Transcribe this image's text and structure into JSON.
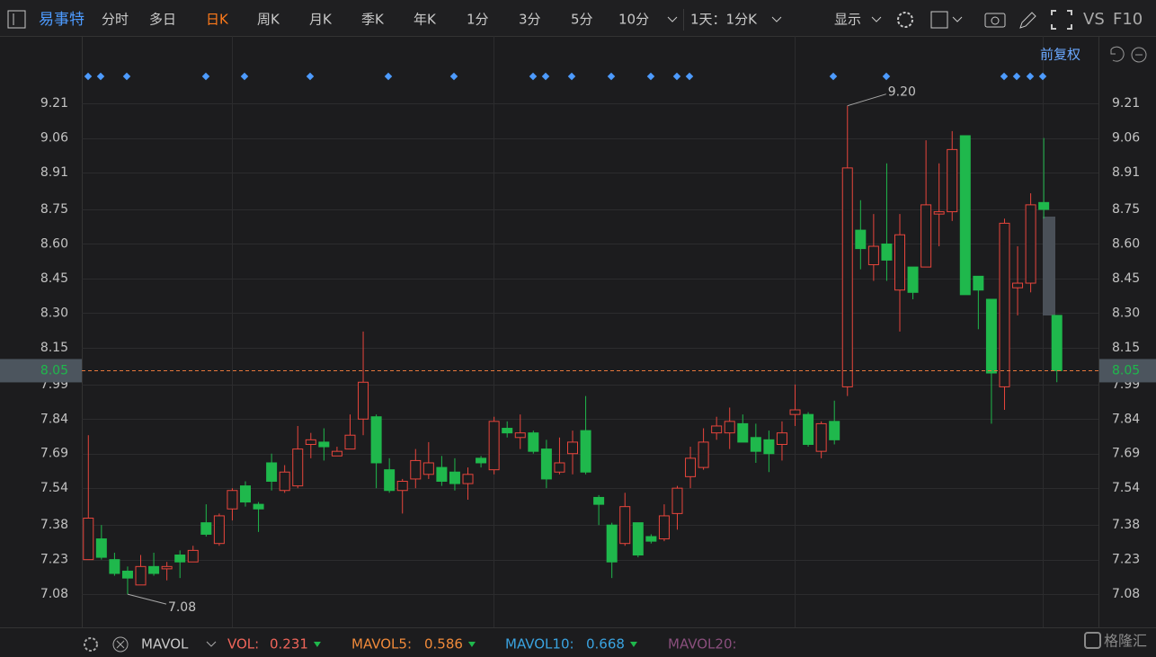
{
  "toolbar": {
    "stock_name": "易事特",
    "periods": [
      "分时",
      "多日",
      "日K",
      "周K",
      "月K",
      "季K",
      "年K",
      "1分",
      "3分",
      "5分",
      "10分"
    ],
    "interval": "1天：1分K",
    "display": "显示",
    "vs": "VS",
    "f10": "F10",
    "adjust": "前复权"
  },
  "chart_data": {
    "type": "candlestick",
    "up_color": "#e8453c",
    "down_color": "#1fb84c",
    "open": [
      7.23,
      7.32,
      7.23,
      7.18,
      7.12,
      7.2,
      7.19,
      7.25,
      7.22,
      7.39,
      7.3,
      7.45,
      7.55,
      7.47,
      7.65,
      7.53,
      7.55,
      7.73,
      7.74,
      7.68,
      7.71,
      7.84,
      7.85,
      7.62,
      7.53,
      7.58,
      7.6,
      7.63,
      7.61,
      7.56,
      7.67,
      7.62,
      7.8,
      7.76,
      7.78,
      7.71,
      7.61,
      7.69,
      7.79,
      7.5,
      7.38,
      7.3,
      7.39,
      7.33,
      7.32,
      7.43,
      7.59,
      7.63,
      7.78,
      7.78,
      7.82,
      7.76,
      7.75,
      7.73,
      7.86,
      7.86,
      7.7,
      7.83,
      7.98,
      8.66,
      8.51,
      8.6,
      8.4,
      8.5,
      8.5,
      8.73,
      8.74,
      9.07,
      8.46,
      8.36,
      7.98,
      8.41,
      8.43,
      8.78,
      8.29
    ],
    "high": [
      7.77,
      7.38,
      7.26,
      7.2,
      7.25,
      7.26,
      7.22,
      7.27,
      7.29,
      7.47,
      7.43,
      7.54,
      7.57,
      7.48,
      7.69,
      7.64,
      7.81,
      7.78,
      7.8,
      7.72,
      7.86,
      8.22,
      7.86,
      7.67,
      7.58,
      7.71,
      7.74,
      7.68,
      7.67,
      7.63,
      7.68,
      7.85,
      7.83,
      7.86,
      7.79,
      7.75,
      7.76,
      7.79,
      7.94,
      7.51,
      7.39,
      7.52,
      7.39,
      7.34,
      7.47,
      7.55,
      7.72,
      7.8,
      7.85,
      7.89,
      7.86,
      7.82,
      7.79,
      7.83,
      7.99,
      7.87,
      7.83,
      7.92,
      9.2,
      8.79,
      8.73,
      8.95,
      8.73,
      8.5,
      9.05,
      8.95,
      9.09,
      9.07,
      8.46,
      8.36,
      8.71,
      8.59,
      8.82,
      9.06,
      8.29
    ],
    "low": [
      7.23,
      7.23,
      7.16,
      7.08,
      7.12,
      7.16,
      7.14,
      7.15,
      7.22,
      7.33,
      7.29,
      7.4,
      7.46,
      7.35,
      7.53,
      7.52,
      7.54,
      7.67,
      7.66,
      7.68,
      7.71,
      7.77,
      7.54,
      7.52,
      7.43,
      7.54,
      7.58,
      7.55,
      7.53,
      7.49,
      7.63,
      7.6,
      7.76,
      7.71,
      7.69,
      7.54,
      7.6,
      7.6,
      7.6,
      7.38,
      7.15,
      7.29,
      7.24,
      7.3,
      7.31,
      7.36,
      7.54,
      7.62,
      7.75,
      7.71,
      7.74,
      7.65,
      7.61,
      7.66,
      7.81,
      7.72,
      7.67,
      7.73,
      7.94,
      8.49,
      8.44,
      8.44,
      8.22,
      8.36,
      8.5,
      8.59,
      8.7,
      8.38,
      8.23,
      7.82,
      7.88,
      8.29,
      8.39,
      8.71,
      8.0
    ],
    "close": [
      7.41,
      7.24,
      7.17,
      7.15,
      7.2,
      7.17,
      7.2,
      7.22,
      7.27,
      7.34,
      7.42,
      7.53,
      7.48,
      7.45,
      7.57,
      7.61,
      7.71,
      7.75,
      7.72,
      7.7,
      7.77,
      8.0,
      7.65,
      7.53,
      7.57,
      7.66,
      7.65,
      7.57,
      7.56,
      7.6,
      7.65,
      7.83,
      7.78,
      7.78,
      7.7,
      7.58,
      7.65,
      7.74,
      7.61,
      7.47,
      7.22,
      7.46,
      7.25,
      7.31,
      7.42,
      7.54,
      7.67,
      7.74,
      7.81,
      7.83,
      7.74,
      7.7,
      7.69,
      7.78,
      7.88,
      7.73,
      7.82,
      7.75,
      8.93,
      8.58,
      8.59,
      8.53,
      8.64,
      8.39,
      8.77,
      8.74,
      9.01,
      8.38,
      8.4,
      8.04,
      8.69,
      8.43,
      8.77,
      8.75,
      8.05
    ],
    "ylim": [
      6.936,
      9.503
    ],
    "yticks": [
      {
        "value": 9.21,
        "label": "9.21"
      },
      {
        "value": 9.06,
        "label": "9.06"
      },
      {
        "value": 8.91,
        "label": "8.91"
      },
      {
        "value": 8.75,
        "label": "8.75"
      },
      {
        "value": 8.6,
        "label": "8.60"
      },
      {
        "value": 8.45,
        "label": "8.45"
      },
      {
        "value": 8.3,
        "label": "8.30"
      },
      {
        "value": 8.15,
        "label": "8.15"
      },
      {
        "value": 7.99,
        "label": "7.99"
      },
      {
        "value": 7.84,
        "label": "7.84"
      },
      {
        "value": 7.69,
        "label": "7.69"
      },
      {
        "value": 7.54,
        "label": "7.54"
      },
      {
        "value": 7.38,
        "label": "7.38"
      },
      {
        "value": 7.23,
        "label": "7.23"
      },
      {
        "value": 7.08,
        "label": "7.08"
      }
    ],
    "grid": true,
    "last_price": {
      "value": 8.05,
      "label": "8.05",
      "color": "#e8783c"
    },
    "high_label": "9.20",
    "low_label": "7.08"
  },
  "indicator": {
    "name": "MAVOL",
    "items": [
      {
        "label": "VOL:",
        "value": 0.231,
        "color": "#f0655a"
      },
      {
        "label": "MAVOL5:",
        "value": 0.586,
        "color": "#f08a3a"
      },
      {
        "label": "MAVOL10:",
        "value": 0.668,
        "color": "#3aa3e0"
      },
      {
        "label": "MAVOL20:",
        "color": "#8a4f7d"
      }
    ]
  },
  "watermark": "格隆汇"
}
